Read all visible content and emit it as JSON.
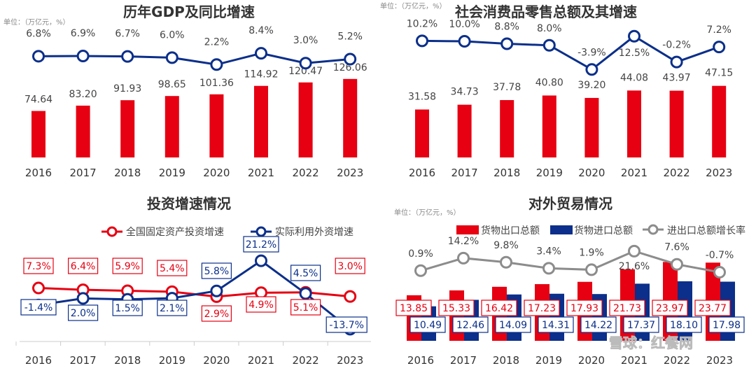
{
  "colors": {
    "red": "#e60012",
    "blue": "#0b2f8a",
    "grey": "#8c8c8c"
  },
  "chart_data": [
    {
      "type": "bar+line",
      "title": "历年GDP及同比增速",
      "unit": "单位：（万亿元，%）",
      "categories": [
        "2016",
        "2017",
        "2018",
        "2019",
        "2020",
        "2021",
        "2022",
        "2023"
      ],
      "series": [
        {
          "kind": "bar",
          "color": "#e60012",
          "values": [
            74.64,
            83.2,
            91.93,
            98.65,
            101.36,
            114.92,
            120.47,
            126.06
          ],
          "labels": [
            "74.64",
            "83.20",
            "91.93",
            "98.65",
            "101.36",
            "114.92",
            "120.47",
            "126.06"
          ]
        },
        {
          "kind": "line",
          "color": "#0b2f8a",
          "values": [
            6.8,
            6.9,
            6.7,
            6.0,
            2.2,
            8.4,
            3.0,
            5.2
          ],
          "labels": [
            "6.8%",
            "6.9%",
            "6.7%",
            "6.0%",
            "2.2%",
            "8.4%",
            "3.0%",
            "5.2%"
          ]
        }
      ]
    },
    {
      "type": "bar+line",
      "title": "社会消费品零售总额及其增速",
      "unit": "单位：（万亿元，%）",
      "categories": [
        "2016",
        "2017",
        "2018",
        "2019",
        "2020",
        "2021",
        "2022",
        "2023"
      ],
      "series": [
        {
          "kind": "bar",
          "color": "#e60012",
          "values": [
            31.58,
            34.73,
            37.78,
            40.8,
            39.2,
            44.08,
            43.97,
            47.15
          ],
          "labels": [
            "31.58",
            "34.73",
            "37.78",
            "40.80",
            "39.20",
            "44.08",
            "43.97",
            "47.15"
          ]
        },
        {
          "kind": "line",
          "color": "#0b2f8a",
          "values": [
            10.2,
            10.0,
            8.8,
            8.0,
            -3.9,
            12.5,
            -0.2,
            7.2
          ],
          "labels": [
            "10.2%",
            "10.0%",
            "8.8%",
            "8.0%",
            "-3.9%",
            "12.5%",
            "-0.2%",
            "7.2%"
          ]
        }
      ]
    },
    {
      "type": "line",
      "title": "投资增速情况",
      "categories": [
        "2016",
        "2017",
        "2018",
        "2019",
        "2020",
        "2021",
        "2022",
        "2023"
      ],
      "legend": "top-right",
      "series": [
        {
          "name": "全国固定资产投资增速",
          "color": "#e60012",
          "values": [
            7.3,
            6.4,
            5.9,
            5.4,
            2.9,
            4.9,
            5.1,
            3.0
          ],
          "labels": [
            "7.3%",
            "6.4%",
            "5.9%",
            "5.4%",
            "2.9%",
            "4.9%",
            "5.1%",
            "3.0%"
          ]
        },
        {
          "name": "实际利用外资增速",
          "color": "#0b2f8a",
          "values": [
            -1.4,
            2.0,
            1.5,
            2.1,
            5.8,
            21.2,
            4.5,
            -13.7
          ],
          "labels": [
            "-1.4%",
            "2.0%",
            "1.5%",
            "2.1%",
            "5.8%",
            "21.2%",
            "4.5%",
            "-13.7%"
          ]
        }
      ]
    },
    {
      "type": "bar+line",
      "title": "对外贸易情况",
      "unit": "单位：（万亿元，%）",
      "categories": [
        "2016",
        "2017",
        "2018",
        "2019",
        "2020",
        "2021",
        "2022",
        "2023"
      ],
      "legend": "top",
      "series": [
        {
          "kind": "bar",
          "name": "货物出口总额",
          "color": "#e60012",
          "values": [
            13.85,
            15.33,
            16.42,
            17.23,
            17.93,
            21.73,
            23.97,
            23.77
          ],
          "labels": [
            "13.85",
            "15.33",
            "16.42",
            "17.23",
            "17.93",
            "21.73",
            "23.97",
            "23.77"
          ]
        },
        {
          "kind": "bar",
          "name": "货物进口总额",
          "color": "#0b2f8a",
          "values": [
            10.49,
            12.46,
            14.09,
            14.31,
            14.22,
            17.37,
            18.1,
            17.98
          ],
          "labels": [
            "10.49",
            "12.46",
            "14.09",
            "14.31",
            "14.22",
            "17.37",
            "18.10",
            "17.98"
          ]
        },
        {
          "kind": "line",
          "name": "进出口总额增长率",
          "color": "#8c8c8c",
          "values": [
            0.9,
            14.2,
            9.8,
            3.4,
            1.9,
            21.6,
            7.6,
            -0.7
          ],
          "labels": [
            "0.9%",
            "14.2%",
            "9.8%",
            "3.4%",
            "1.9%",
            "21.6%",
            "7.6%",
            "-0.7%"
          ]
        }
      ]
    }
  ],
  "watermark": "雪球：红餐网"
}
